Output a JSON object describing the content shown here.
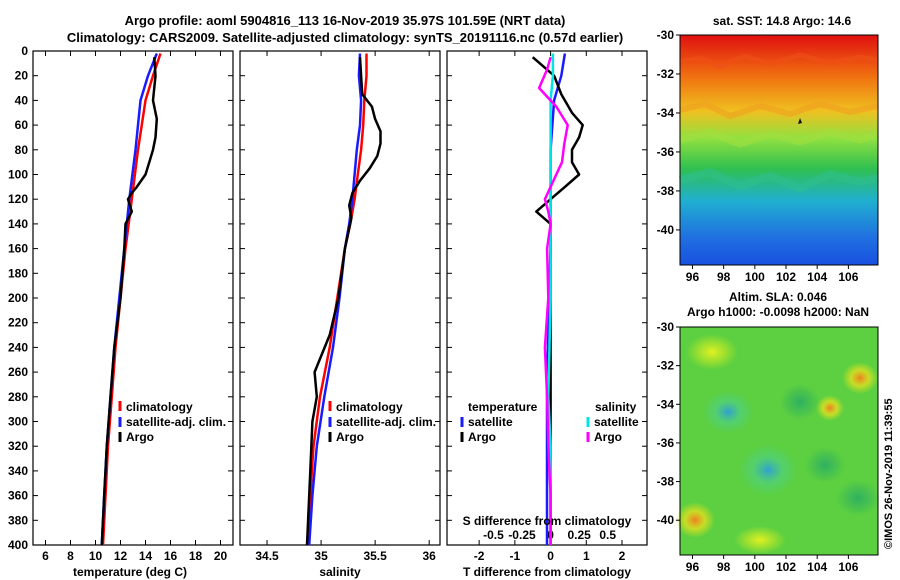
{
  "header": {
    "title_line1": "Argo profile: aoml 5904816_113 16-Nov-2019 35.97S 101.59E (NRT data)",
    "title_line2": "Climatology: CARS2009. Satellite-adjusted climatology: synTS_20191116.nc (0.57d earlier)"
  },
  "colors": {
    "climatology": "#ff0000",
    "satellite": "#1a1aff",
    "argo": "#000000",
    "salinity_sat": "#00e5e5",
    "salinity_argo": "#ff00ff"
  },
  "chart_data": [
    {
      "type": "line",
      "id": "temperature",
      "xlabel": "temperature (deg C)",
      "ylabel": "",
      "xlim": [
        5,
        21
      ],
      "ylim": [
        400,
        0
      ],
      "xticks": [
        "6",
        "8",
        "10",
        "12",
        "14",
        "16",
        "18",
        "20"
      ],
      "xtick_values": [
        6,
        8,
        10,
        12,
        14,
        16,
        18,
        20
      ],
      "yticks": [
        "0",
        "20",
        "40",
        "60",
        "80",
        "100",
        "120",
        "140",
        "160",
        "180",
        "200",
        "220",
        "240",
        "260",
        "280",
        "300",
        "320",
        "340",
        "360",
        "380",
        "400"
      ],
      "legend": [
        "climatology",
        "satellite-adj. clim.",
        "Argo"
      ],
      "series": [
        {
          "name": "climatology",
          "color": "#ff0000",
          "depth": [
            2,
            20,
            40,
            80,
            120,
            160,
            200,
            240,
            280,
            320,
            360,
            400
          ],
          "values": [
            15.2,
            14.6,
            14.0,
            13.4,
            12.9,
            12.4,
            12.0,
            11.6,
            11.3,
            11.0,
            10.8,
            10.6
          ]
        },
        {
          "name": "satellite-adj. clim.",
          "color": "#1a1aff",
          "depth": [
            2,
            20,
            40,
            80,
            120,
            160,
            200,
            240,
            280,
            320,
            360,
            400
          ],
          "values": [
            14.9,
            14.2,
            13.6,
            13.2,
            12.7,
            12.3,
            11.9,
            11.5,
            11.2,
            10.9,
            10.7,
            10.5
          ]
        },
        {
          "name": "Argo",
          "color": "#000000",
          "depth": [
            5,
            20,
            40,
            55,
            70,
            80,
            90,
            100,
            110,
            115,
            120,
            130,
            140,
            160,
            200,
            240,
            280,
            320,
            360,
            400
          ],
          "values": [
            14.7,
            14.8,
            14.6,
            14.9,
            14.8,
            14.6,
            14.3,
            14.0,
            13.3,
            12.9,
            12.6,
            12.9,
            12.4,
            12.3,
            12.0,
            11.5,
            11.2,
            10.9,
            10.7,
            10.5
          ]
        }
      ]
    },
    {
      "type": "line",
      "id": "salinity",
      "xlabel": "salinity",
      "ylabel": "",
      "xlim": [
        34.25,
        36.1
      ],
      "ylim": [
        400,
        0
      ],
      "xticks": [
        "34.5",
        "35",
        "35.5",
        "36"
      ],
      "xtick_values": [
        34.5,
        35,
        35.5,
        36
      ],
      "legend": [
        "climatology",
        "satellite-adj. clim.",
        "Argo"
      ],
      "series": [
        {
          "name": "climatology",
          "color": "#ff0000",
          "depth": [
            2,
            20,
            40,
            60,
            80,
            100,
            120,
            140,
            160,
            200,
            240,
            280,
            320,
            360,
            400
          ],
          "values": [
            35.42,
            35.42,
            35.4,
            35.39,
            35.37,
            35.34,
            35.31,
            35.27,
            35.22,
            35.15,
            35.08,
            34.99,
            34.93,
            34.9,
            34.88
          ]
        },
        {
          "name": "satellite-adj. clim.",
          "color": "#1a1aff",
          "depth": [
            2,
            20,
            40,
            60,
            80,
            100,
            120,
            140,
            160,
            200,
            240,
            280,
            320,
            360,
            400
          ],
          "values": [
            35.36,
            35.35,
            35.37,
            35.36,
            35.33,
            35.31,
            35.29,
            35.26,
            35.22,
            35.17,
            35.11,
            35.03,
            34.96,
            34.92,
            34.89
          ]
        },
        {
          "name": "Argo",
          "color": "#000000",
          "depth": [
            5,
            20,
            35,
            45,
            55,
            65,
            75,
            85,
            95,
            105,
            115,
            125,
            135,
            160,
            200,
            230,
            260,
            280,
            300,
            340,
            380,
            400
          ],
          "values": [
            35.36,
            35.37,
            35.38,
            35.47,
            35.5,
            35.55,
            35.55,
            35.52,
            35.45,
            35.36,
            35.29,
            35.26,
            35.28,
            35.22,
            35.16,
            35.08,
            34.94,
            34.96,
            34.92,
            34.9,
            34.88,
            34.87
          ]
        }
      ]
    },
    {
      "type": "line",
      "id": "difference",
      "xlabel": "T difference from climatology",
      "xlabel_top": "S difference from climatology",
      "xlim": [
        -2.9,
        2.7
      ],
      "ylim": [
        400,
        0
      ],
      "xticks": [
        "-2",
        "-1",
        "0",
        "1",
        "2"
      ],
      "xtick_values": [
        -2,
        -1,
        0,
        1,
        2
      ],
      "sticks": [
        "-0.5",
        "-0.25",
        "0",
        "0.25",
        "0.5"
      ],
      "stick_values": [
        -0.5,
        -0.25,
        0,
        0.25,
        0.5
      ],
      "legend_left_title": "temperature",
      "legend_right_title": "salinity",
      "legend": [
        "satellite",
        "Argo",
        "satellite",
        "Argo"
      ],
      "series": [
        {
          "name": "T satellite",
          "color": "#1a1aff",
          "depth": [
            2,
            20,
            40,
            80,
            120,
            160,
            200,
            280,
            320,
            400
          ],
          "values": [
            0.4,
            0.3,
            0.1,
            0.0,
            0.0,
            0.0,
            -0.05,
            -0.1,
            -0.1,
            -0.1
          ]
        },
        {
          "name": "T Argo",
          "color": "#000000",
          "depth": [
            5,
            20,
            35,
            50,
            60,
            70,
            80,
            90,
            100,
            110,
            120,
            130,
            140,
            200,
            300,
            400
          ],
          "values": [
            -0.5,
            0.1,
            0.3,
            0.6,
            0.9,
            0.8,
            0.6,
            0.6,
            0.8,
            0.4,
            0.0,
            -0.4,
            0.0,
            0.0,
            0.0,
            0.0
          ]
        },
        {
          "name": "S satellite",
          "color": "#00e5e5",
          "depth": [
            2,
            20,
            40,
            80,
            120,
            160,
            200,
            280,
            320,
            360,
            400
          ],
          "values": [
            0.02,
            0.02,
            0.0,
            0.0,
            0.0,
            0.0,
            0.0,
            -0.02,
            0.0,
            0.0,
            0.0
          ]
        },
        {
          "name": "S Argo",
          "color": "#ff00ff",
          "depth": [
            5,
            15,
            30,
            45,
            60,
            75,
            90,
            100,
            110,
            120,
            130,
            140,
            160,
            200,
            240,
            280,
            320,
            360,
            400
          ],
          "values": [
            0.0,
            -0.03,
            -0.1,
            0.05,
            0.15,
            0.12,
            0.1,
            0.05,
            0.0,
            -0.05,
            -0.02,
            0.0,
            -0.03,
            -0.02,
            -0.05,
            -0.03,
            -0.02,
            0.0,
            0.0
          ]
        }
      ]
    }
  ],
  "maps": {
    "sst_title": "sat. SST: 14.8 Argo: 14.6",
    "sla_title1": "Altim. SLA: 0.046",
    "sla_title2": "Argo h1000: -0.0098 h2000: NaN",
    "lat_ticks": [
      "-30",
      "-32",
      "-34",
      "-36",
      "-38",
      "-40"
    ],
    "lat_values": [
      -30,
      -32,
      -34,
      -36,
      -38,
      -40
    ],
    "lon_ticks": [
      "96",
      "98",
      "100",
      "102",
      "104",
      "106"
    ],
    "lon_values": [
      96,
      98,
      100,
      102,
      104,
      106
    ],
    "lat_range": [
      -41.8,
      -30
    ],
    "lon_range": [
      95.2,
      107.9
    ]
  },
  "footer": {
    "credit": "©IMOS 26-Nov-2019 11:39:55"
  }
}
